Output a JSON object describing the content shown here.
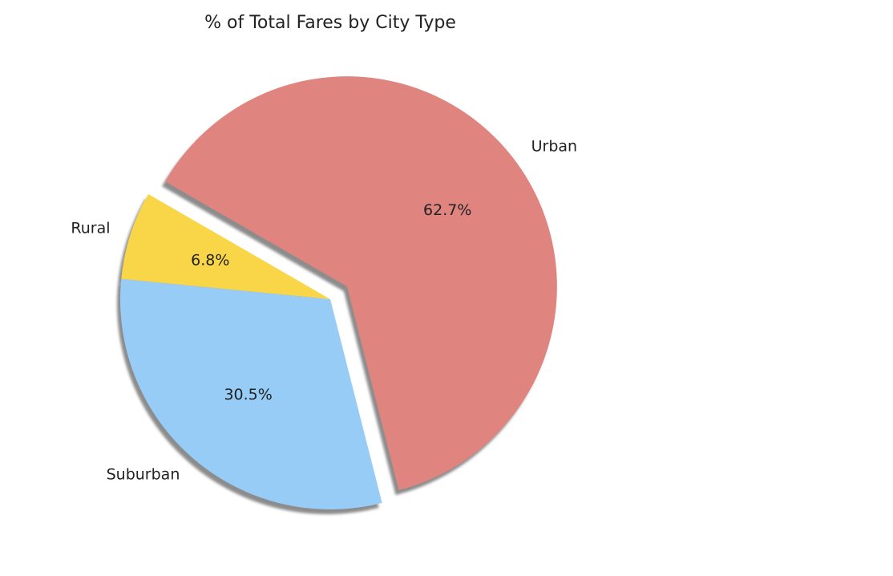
{
  "chart_data": {
    "type": "pie",
    "title": "% of Total Fares by City Type",
    "labels": [
      "Rural",
      "Suburban",
      "Urban"
    ],
    "values": [
      6.8,
      30.5,
      62.7
    ],
    "value_labels": [
      "6.8%",
      "30.5%",
      "62.7%"
    ],
    "colors": [
      "#f9d648",
      "#97ccf6",
      "#e08480"
    ],
    "explode": [
      0,
      0,
      0.1
    ],
    "shadow": true,
    "start_angle": 150
  }
}
